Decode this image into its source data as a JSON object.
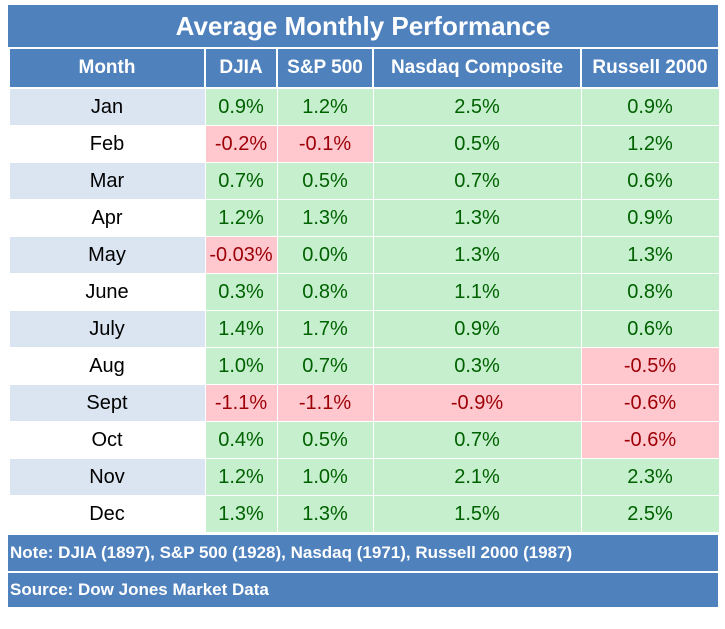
{
  "title": "Average Monthly Performance",
  "note": "Note: DJIA (1897), S&P 500 (1928), Nasdaq (1971), Russell 2000 (1987)",
  "source": "Source: Dow Jones Market Data",
  "colors": {
    "header": "#4f81bd",
    "positive_fill": "#c6efce",
    "positive_text": "#006100",
    "negative_fill": "#ffc7ce",
    "negative_text": "#9c0006"
  },
  "chart_data": {
    "type": "table",
    "columns": [
      "Month",
      "DJIA",
      "S&P 500",
      "Nasdaq Composite",
      "Russell 2000"
    ],
    "rows": [
      {
        "month": "Jan",
        "values": [
          "0.9%",
          "1.2%",
          "2.5%",
          "0.9%"
        ]
      },
      {
        "month": "Feb",
        "values": [
          "-0.2%",
          "-0.1%",
          "0.5%",
          "1.2%"
        ]
      },
      {
        "month": "Mar",
        "values": [
          "0.7%",
          "0.5%",
          "0.7%",
          "0.6%"
        ]
      },
      {
        "month": "Apr",
        "values": [
          "1.2%",
          "1.3%",
          "1.3%",
          "0.9%"
        ]
      },
      {
        "month": "May",
        "values": [
          "-0.03%",
          "0.0%",
          "1.3%",
          "1.3%"
        ]
      },
      {
        "month": "June",
        "values": [
          "0.3%",
          "0.8%",
          "1.1%",
          "0.8%"
        ]
      },
      {
        "month": "July",
        "values": [
          "1.4%",
          "1.7%",
          "0.9%",
          "0.6%"
        ]
      },
      {
        "month": "Aug",
        "values": [
          "1.0%",
          "0.7%",
          "0.3%",
          "-0.5%"
        ]
      },
      {
        "month": "Sept",
        "values": [
          "-1.1%",
          "-1.1%",
          "-0.9%",
          "-0.6%"
        ]
      },
      {
        "month": "Oct",
        "values": [
          "0.4%",
          "0.5%",
          "0.7%",
          "-0.6%"
        ]
      },
      {
        "month": "Nov",
        "values": [
          "1.2%",
          "1.0%",
          "2.1%",
          "2.3%"
        ]
      },
      {
        "month": "Dec",
        "values": [
          "1.3%",
          "1.3%",
          "1.5%",
          "2.5%"
        ]
      }
    ]
  }
}
